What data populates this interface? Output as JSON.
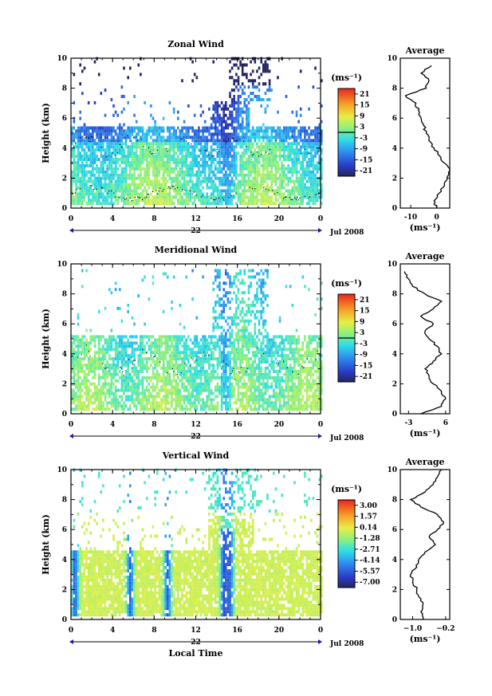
{
  "chart_data": [
    {
      "type": "heatmap",
      "title": "Zonal Wind",
      "xlabel": "",
      "ylabel": "Height (km)",
      "xlim": [
        0,
        24
      ],
      "ylim": [
        0,
        10
      ],
      "x_ticks": [
        "0",
        "4",
        "8",
        "12",
        "16",
        "20",
        "0"
      ],
      "y_ticks": [
        "0",
        "2",
        "4",
        "6",
        "8",
        "10"
      ],
      "date_day": "22",
      "date_label": "Jul 2008",
      "colorbar": {
        "unit": "(ms⁻¹)",
        "ticks": [
          "21",
          "15",
          "9",
          "3",
          "-3",
          "-9",
          "-15",
          "-21"
        ],
        "range": [
          -24,
          24
        ]
      },
      "average_profile": {
        "title": "Average",
        "xlabel": "(ms⁻¹)",
        "x_ticks": [
          "-10",
          "0"
        ],
        "xlim": [
          -14,
          5
        ],
        "heights": [
          0,
          0.5,
          1,
          1.5,
          2,
          2.5,
          3,
          3.5,
          4,
          4.5,
          5,
          5.5,
          6,
          6.5,
          7,
          7.5,
          8,
          8.5,
          9,
          9.5
        ],
        "values": [
          0,
          -1,
          1,
          3,
          4,
          5,
          3,
          1,
          -1,
          -3,
          -4,
          -5,
          -6,
          -7,
          -8,
          -12,
          -4,
          -3,
          -6,
          -2
        ]
      }
    },
    {
      "type": "heatmap",
      "title": "Meridional Wind",
      "xlabel": "",
      "ylabel": "Height (km)",
      "xlim": [
        0,
        24
      ],
      "ylim": [
        0,
        10
      ],
      "x_ticks": [
        "0",
        "4",
        "8",
        "12",
        "16",
        "20",
        "0"
      ],
      "y_ticks": [
        "0",
        "2",
        "4",
        "6",
        "8",
        "10"
      ],
      "date_day": "22",
      "date_label": "Jul 2008",
      "colorbar": {
        "unit": "(ms⁻¹)",
        "ticks": [
          "21",
          "15",
          "9",
          "3",
          "-3",
          "-9",
          "-15",
          "-21"
        ],
        "range": [
          -24,
          24
        ]
      },
      "average_profile": {
        "title": "Average",
        "xlabel": "(ms⁻¹)",
        "x_ticks": [
          "-3",
          "6"
        ],
        "xlim": [
          -5,
          7
        ],
        "heights": [
          0,
          0.5,
          1,
          1.5,
          2,
          2.5,
          3,
          3.5,
          4,
          4.5,
          5,
          5.5,
          6,
          6.5,
          7,
          7.5,
          8,
          8.5,
          9,
          9.5
        ],
        "values": [
          0,
          5,
          6,
          5,
          3,
          2,
          1,
          3,
          5,
          4,
          2,
          1,
          3,
          0,
          3,
          5,
          1,
          -2,
          -3,
          -4
        ]
      }
    },
    {
      "type": "heatmap",
      "title": "Vertical Wind",
      "xlabel": "Local Time",
      "ylabel": "Height (km)",
      "xlim": [
        0,
        24
      ],
      "ylim": [
        0,
        10
      ],
      "x_ticks": [
        "0",
        "4",
        "8",
        "12",
        "16",
        "20",
        "0"
      ],
      "y_ticks": [
        "0",
        "2",
        "4",
        "6",
        "8",
        "10"
      ],
      "date_day": "22",
      "date_label": "Jul 2008",
      "colorbar": {
        "unit": "(ms⁻¹)",
        "ticks": [
          "3.00",
          "1.57",
          "0.14",
          "-1.28",
          "-2.71",
          "-4.14",
          "-5.57",
          "-7.00"
        ],
        "range": [
          -7.7,
          3.7
        ]
      },
      "average_profile": {
        "title": "Average",
        "xlabel": "(ms⁻¹)",
        "x_ticks": [
          "−1.0",
          "−0.2"
        ],
        "xlim": [
          -1.3,
          -0.1
        ],
        "heights": [
          0,
          0.5,
          1,
          1.5,
          2,
          2.5,
          3,
          3.5,
          4,
          4.5,
          5,
          5.5,
          6,
          6.5,
          7,
          7.5,
          8,
          8.5,
          9,
          9.5,
          10
        ],
        "values": [
          -0.75,
          -0.8,
          -0.75,
          -0.85,
          -0.9,
          -1.0,
          -1.05,
          -0.9,
          -0.85,
          -0.7,
          -0.45,
          -0.6,
          -0.4,
          -0.25,
          -0.4,
          -0.8,
          -1.05,
          -0.7,
          -0.5,
          -0.4,
          -0.3
        ]
      }
    }
  ]
}
